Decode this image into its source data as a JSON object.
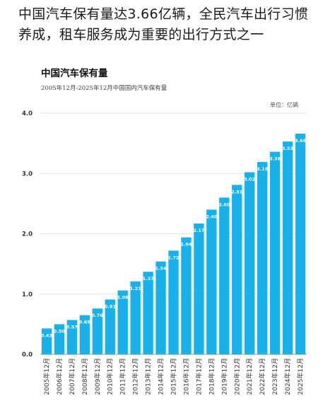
{
  "article": {
    "headline": "中国汽车保有量达3.66亿辆，全民汽车出行习惯养成，租车服务成为重要的出行方式之一"
  },
  "chart_data": {
    "type": "bar",
    "title": "中国汽车保有量",
    "subtitle": "2005年12月-2025年12月中国国内汽车保有量",
    "unit": "单位：亿辆",
    "xlabel": "",
    "ylabel": "",
    "ylim": [
      0,
      4.0
    ],
    "yticks": [
      "0.0",
      "1.0",
      "2.0",
      "3.0",
      "4.0"
    ],
    "grid": true,
    "color": "#1ab1ea",
    "categories": [
      "2005年12月",
      "2006年12月",
      "2007年12月",
      "2008年12月",
      "2009年12月",
      "2010年12月",
      "2011年12月",
      "2012年12月",
      "2013年12月",
      "2014年12月",
      "2015年12月",
      "2016年12月",
      "2017年12月",
      "2018年12月",
      "2019年12月",
      "2020年12月",
      "2021年12月",
      "2022年12月",
      "2023年12月",
      "2024年12月",
      "2025年12月"
    ],
    "values": [
      0.43,
      0.5,
      0.57,
      0.65,
      0.76,
      0.91,
      1.06,
      1.21,
      1.37,
      1.54,
      1.72,
      1.94,
      2.17,
      2.4,
      2.6,
      2.81,
      3.02,
      3.19,
      3.36,
      3.53,
      3.66
    ],
    "labels": [
      "0.43",
      "0.50",
      "0.57",
      "0.65",
      "0.76",
      "0.91",
      "1.06",
      "1.21",
      "1.37",
      "1.54",
      "1.72",
      "1.94",
      "2.17",
      "2.40",
      "2.60",
      "2.81",
      "3.02",
      "3.19",
      "3.36",
      "3.53",
      "3.66"
    ]
  }
}
